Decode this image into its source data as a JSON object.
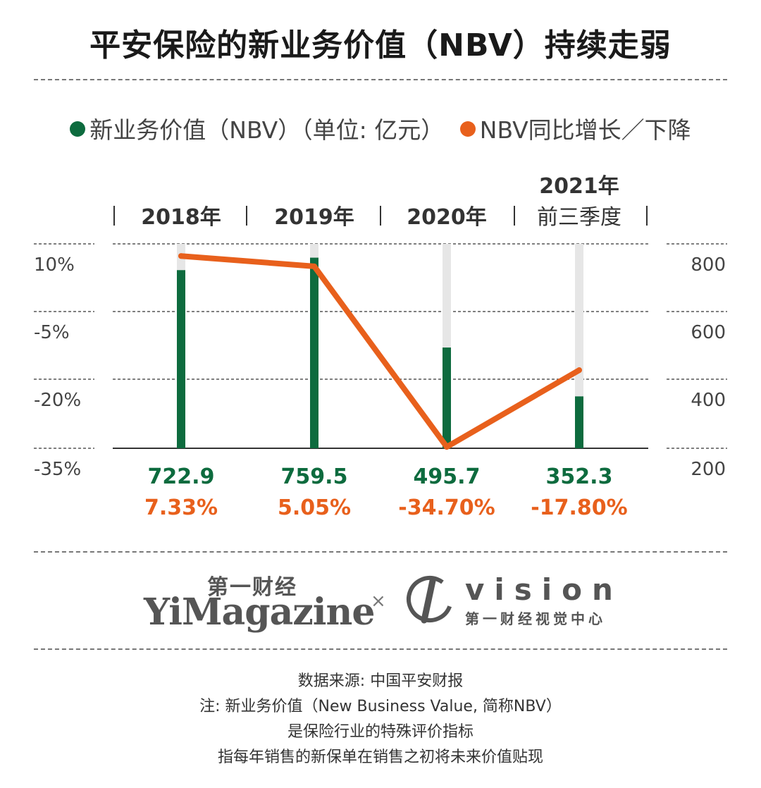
{
  "title": "平安保险的新业务价值（NBV）持续走弱",
  "legend": {
    "nbv_label": "新业务价值（NBV）（单位: 亿元）",
    "growth_label": "NBV同比增长／下降"
  },
  "colors": {
    "nbv": "#0d6b3e",
    "growth": "#e8601c",
    "track": "#e6e6e6",
    "grid": "#555555"
  },
  "chart_data": {
    "type": "bar",
    "categories": [
      [
        "2018年"
      ],
      [
        "2019年"
      ],
      [
        "2020年"
      ],
      [
        "2021年",
        "前三季度"
      ]
    ],
    "series": [
      {
        "name": "新业务价值（NBV）（单位: 亿元）",
        "type": "bar",
        "axis": "right",
        "values": [
          722.9,
          759.5,
          495.7,
          352.3
        ],
        "value_labels": [
          "722.9",
          "759.5",
          "495.7",
          "352.3"
        ]
      },
      {
        "name": "NBV同比增长／下降",
        "type": "line",
        "axis": "left",
        "values": [
          7.33,
          5.05,
          -34.7,
          -17.8
        ],
        "value_labels": [
          "7.33%",
          "5.05%",
          "-34.70%",
          "-17.80%"
        ]
      }
    ],
    "left_axis": {
      "ticks": [
        10,
        -5,
        -20,
        -35
      ],
      "tick_labels": [
        "10%",
        "-5%",
        "-20%",
        "-35%"
      ],
      "range": [
        -35,
        10
      ]
    },
    "right_axis": {
      "ticks": [
        800,
        600,
        400,
        200
      ],
      "tick_labels": [
        "800",
        "600",
        "400",
        "200"
      ],
      "range": [
        200,
        800
      ]
    },
    "grid": true
  },
  "branding": {
    "yimagazine_cn": "第一财经",
    "yimagazine_en": "YiMagazine",
    "separator": "×",
    "vision_en": "vision",
    "vision_cn": "第一财经视觉中心"
  },
  "footer": {
    "source": "数据来源: 中国平安财报",
    "note1": "注: 新业务价值（New Business Value, 简称NBV）",
    "note2": "是保险行业的特殊评价指标",
    "note3": "指每年销售的新保单在销售之初将未来价值贴现"
  }
}
